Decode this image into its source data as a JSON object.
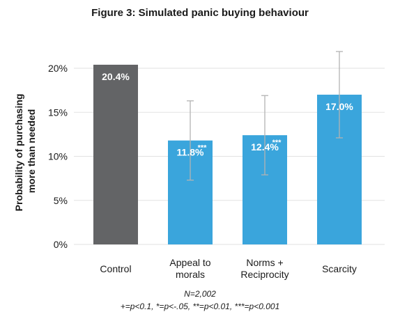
{
  "title": "Figure 3: Simulated panic buying behaviour",
  "notes": {
    "sample": "N=2,002",
    "significance": "+=p<0.1, *=p<-.05, **=p<0.01, ***=p<0.001"
  },
  "chart_data": {
    "type": "bar",
    "ylabel": "Probability of purchasing more than needed",
    "ylabel_lines": [
      "Probability of purchasing",
      "more than needed"
    ],
    "ylim": [
      0,
      0.2
    ],
    "yticks": [
      0,
      0.05,
      0.1,
      0.15,
      0.2
    ],
    "ytick_labels": [
      "0%",
      "5%",
      "10%",
      "15%",
      "20%"
    ],
    "grid": true,
    "categories": [
      "Control",
      "Appeal to morals",
      "Norms + Reciprocity",
      "Scarcity"
    ],
    "category_lines": [
      [
        "Control"
      ],
      [
        "Appeal to",
        "morals"
      ],
      [
        "Norms +",
        "Reciprocity"
      ],
      [
        "Scarcity"
      ]
    ],
    "values": [
      0.204,
      0.118,
      0.124,
      0.17
    ],
    "value_labels": [
      "20.4%",
      "11.8%",
      "12.4%",
      "17.0%"
    ],
    "significance_marks": [
      "",
      "***",
      "***",
      ""
    ],
    "error_bars": [
      null,
      [
        0.073,
        0.163
      ],
      [
        0.079,
        0.169
      ],
      [
        0.121,
        0.219
      ]
    ],
    "colors": [
      "#636466",
      "#3aa5dc",
      "#3aa5dc",
      "#3aa5dc"
    ],
    "error_bar_color": "#b3b3b3",
    "grid_color": "#e2e2e2"
  }
}
